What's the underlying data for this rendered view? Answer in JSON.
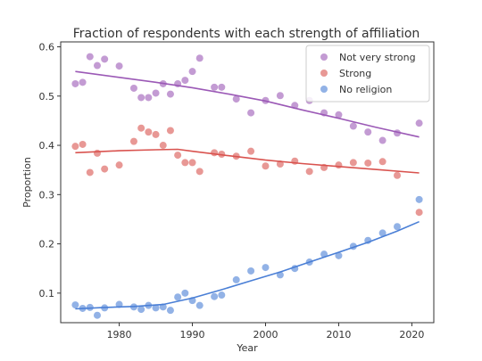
{
  "chart_data": {
    "type": "scatter",
    "title": "Fraction of respondents with each strength of affiliation",
    "xlabel": "Year",
    "ylabel": "Proportion",
    "xlim": [
      1972,
      2023
    ],
    "ylim": [
      0.04,
      0.61
    ],
    "xticks": [
      1980,
      1990,
      2000,
      2010,
      2020
    ],
    "yticks": [
      0.1,
      0.2,
      0.3,
      0.4,
      0.5,
      0.6
    ],
    "grid": false,
    "legend_position": "top-right",
    "series": [
      {
        "name": "Not very strong",
        "color": "#9b59b6",
        "points": [
          [
            1974,
            0.525
          ],
          [
            1975,
            0.528
          ],
          [
            1976,
            0.58
          ],
          [
            1977,
            0.562
          ],
          [
            1978,
            0.575
          ],
          [
            1980,
            0.561
          ],
          [
            1982,
            0.516
          ],
          [
            1983,
            0.497
          ],
          [
            1984,
            0.497
          ],
          [
            1985,
            0.506
          ],
          [
            1986,
            0.525
          ],
          [
            1987,
            0.504
          ],
          [
            1988,
            0.525
          ],
          [
            1989,
            0.532
          ],
          [
            1990,
            0.55
          ],
          [
            1991,
            0.577
          ],
          [
            1993,
            0.518
          ],
          [
            1994,
            0.518
          ],
          [
            1996,
            0.494
          ],
          [
            1998,
            0.466
          ],
          [
            2000,
            0.491
          ],
          [
            2002,
            0.501
          ],
          [
            2004,
            0.481
          ],
          [
            2006,
            0.491
          ],
          [
            2008,
            0.466
          ],
          [
            2010,
            0.462
          ],
          [
            2012,
            0.439
          ],
          [
            2014,
            0.427
          ],
          [
            2016,
            0.41
          ],
          [
            2018,
            0.425
          ],
          [
            2021,
            0.445
          ]
        ],
        "trend": [
          [
            1974,
            0.55
          ],
          [
            1980,
            0.538
          ],
          [
            1985,
            0.528
          ],
          [
            1990,
            0.517
          ],
          [
            1995,
            0.504
          ],
          [
            2000,
            0.49
          ],
          [
            2005,
            0.472
          ],
          [
            2010,
            0.455
          ],
          [
            2015,
            0.437
          ],
          [
            2021,
            0.417
          ]
        ]
      },
      {
        "name": "Strong",
        "color": "#d9534f",
        "points": [
          [
            1974,
            0.398
          ],
          [
            1975,
            0.402
          ],
          [
            1976,
            0.345
          ],
          [
            1977,
            0.384
          ],
          [
            1978,
            0.352
          ],
          [
            1980,
            0.36
          ],
          [
            1982,
            0.408
          ],
          [
            1983,
            0.435
          ],
          [
            1984,
            0.427
          ],
          [
            1985,
            0.422
          ],
          [
            1986,
            0.4
          ],
          [
            1987,
            0.43
          ],
          [
            1988,
            0.38
          ],
          [
            1989,
            0.365
          ],
          [
            1990,
            0.365
          ],
          [
            1991,
            0.347
          ],
          [
            1993,
            0.385
          ],
          [
            1994,
            0.382
          ],
          [
            1996,
            0.378
          ],
          [
            1998,
            0.388
          ],
          [
            2000,
            0.358
          ],
          [
            2002,
            0.362
          ],
          [
            2004,
            0.368
          ],
          [
            2006,
            0.347
          ],
          [
            2008,
            0.355
          ],
          [
            2010,
            0.36
          ],
          [
            2012,
            0.365
          ],
          [
            2014,
            0.364
          ],
          [
            2016,
            0.367
          ],
          [
            2018,
            0.339
          ],
          [
            2021,
            0.264
          ]
        ],
        "trend": [
          [
            1974,
            0.385
          ],
          [
            1980,
            0.389
          ],
          [
            1985,
            0.391
          ],
          [
            1988,
            0.392
          ],
          [
            1990,
            0.388
          ],
          [
            1995,
            0.379
          ],
          [
            2000,
            0.37
          ],
          [
            2005,
            0.363
          ],
          [
            2010,
            0.357
          ],
          [
            2015,
            0.351
          ],
          [
            2021,
            0.344
          ]
        ]
      },
      {
        "name": "No religion",
        "color": "#4a7fd6",
        "points": [
          [
            1974,
            0.076
          ],
          [
            1975,
            0.069
          ],
          [
            1976,
            0.071
          ],
          [
            1977,
            0.055
          ],
          [
            1978,
            0.07
          ],
          [
            1980,
            0.077
          ],
          [
            1982,
            0.072
          ],
          [
            1983,
            0.067
          ],
          [
            1984,
            0.075
          ],
          [
            1985,
            0.07
          ],
          [
            1986,
            0.072
          ],
          [
            1987,
            0.065
          ],
          [
            1988,
            0.092
          ],
          [
            1989,
            0.1
          ],
          [
            1990,
            0.085
          ],
          [
            1991,
            0.075
          ],
          [
            1993,
            0.093
          ],
          [
            1994,
            0.096
          ],
          [
            1996,
            0.127
          ],
          [
            1998,
            0.145
          ],
          [
            2000,
            0.152
          ],
          [
            2002,
            0.137
          ],
          [
            2004,
            0.15
          ],
          [
            2006,
            0.163
          ],
          [
            2008,
            0.179
          ],
          [
            2010,
            0.176
          ],
          [
            2012,
            0.195
          ],
          [
            2014,
            0.207
          ],
          [
            2016,
            0.222
          ],
          [
            2018,
            0.235
          ],
          [
            2021,
            0.29
          ]
        ],
        "trend": [
          [
            1974,
            0.068
          ],
          [
            1978,
            0.071
          ],
          [
            1982,
            0.073
          ],
          [
            1986,
            0.077
          ],
          [
            1990,
            0.09
          ],
          [
            1994,
            0.107
          ],
          [
            1998,
            0.125
          ],
          [
            2002,
            0.143
          ],
          [
            2006,
            0.163
          ],
          [
            2010,
            0.183
          ],
          [
            2014,
            0.203
          ],
          [
            2018,
            0.226
          ],
          [
            2021,
            0.245
          ]
        ]
      }
    ]
  }
}
